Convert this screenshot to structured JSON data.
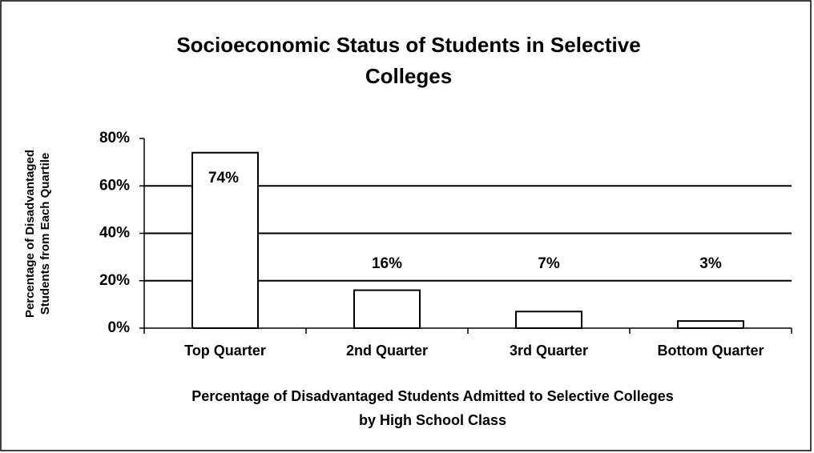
{
  "chart_data": {
    "type": "bar",
    "title": [
      "Socioeconomic Status of Students in Selective",
      "Colleges"
    ],
    "ylabel": [
      "Percentage of Disadvantaged",
      "Students from Each Quartile"
    ],
    "xlabel": [
      "Percentage of Disadvantaged Students Admitted to Selective Colleges",
      "by High School Class"
    ],
    "categories": [
      "Top Quarter",
      "2nd Quarter",
      "3rd Quarter",
      "Bottom Quarter"
    ],
    "values": [
      74,
      16,
      7,
      3
    ],
    "value_labels": [
      "74%",
      "16%",
      "7%",
      "3%"
    ],
    "color": "#ffffff",
    "ylim": [
      0,
      80
    ],
    "yticks": [
      {
        "value": 0,
        "label": "0%"
      },
      {
        "value": 20,
        "label": "20%"
      },
      {
        "value": 40,
        "label": "40%"
      },
      {
        "value": 60,
        "label": "60%"
      },
      {
        "value": 80,
        "label": "80%"
      }
    ],
    "grid": true
  }
}
